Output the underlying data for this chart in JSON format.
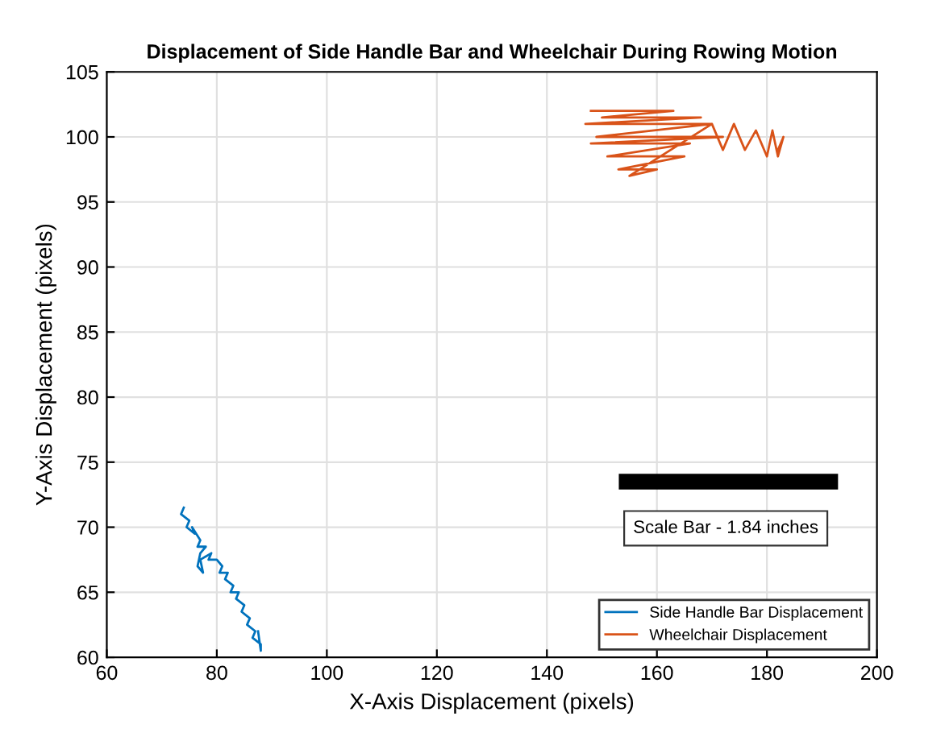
{
  "chart_data": {
    "type": "line",
    "title": "Displacement of Side Handle Bar and Wheelchair During Rowing Motion",
    "xlabel": "X-Axis Displacement (pixels)",
    "ylabel": "Y-Axis Displacement (pixels)",
    "series": [
      {
        "name": "Side Handle Bar Displacement",
        "color": "#0072bd",
        "x": [
          74,
          73.5,
          75,
          74.5,
          76,
          75.5,
          77,
          76.5,
          78,
          77,
          76.5,
          77.5,
          77,
          79,
          78.5,
          80,
          81,
          80.5,
          82,
          81.5,
          83,
          82.5,
          84,
          83.5,
          85,
          84.5,
          86,
          85.5,
          87,
          86.5,
          88,
          88,
          87.5
        ],
        "values": [
          71.5,
          71,
          70.5,
          70,
          69.5,
          70,
          69,
          68.5,
          68.5,
          68,
          67,
          66.5,
          67.5,
          68,
          67.5,
          67.5,
          67,
          66.5,
          66.5,
          66,
          65.5,
          65,
          65,
          64.5,
          64,
          63.5,
          63,
          62.5,
          62,
          61.5,
          61,
          60.5,
          62
        ]
      },
      {
        "name": "Wheelchair Displacement",
        "color": "#d95319",
        "x": [
          148,
          163,
          150,
          168,
          147,
          170,
          149,
          172,
          148,
          166,
          151,
          165,
          153,
          160,
          155,
          170,
          172,
          174,
          176,
          178,
          180,
          181,
          182,
          183,
          182
        ],
        "values": [
          102,
          102,
          101.5,
          101.5,
          101,
          101,
          100,
          100,
          99.5,
          99.5,
          98.5,
          98.5,
          97.5,
          97.5,
          97,
          101,
          99,
          101,
          99,
          100.5,
          98.5,
          100.5,
          98.5,
          100,
          99
        ]
      },
      {
        "color": "#000000",
        "x": [
          154.5,
          191.5
        ],
        "values": [
          73.5,
          73.5
        ]
      }
    ],
    "annotations": [
      "Scale Bar - 1.84 inches"
    ],
    "xlim": [
      60,
      200
    ],
    "xticks": [
      60,
      80,
      100,
      120,
      140,
      160,
      180,
      200
    ],
    "ylim": [
      60,
      105
    ],
    "yticks": [
      60,
      65,
      70,
      75,
      80,
      85,
      90,
      95,
      100,
      105
    ],
    "grid": true,
    "legend": "bottom right"
  }
}
